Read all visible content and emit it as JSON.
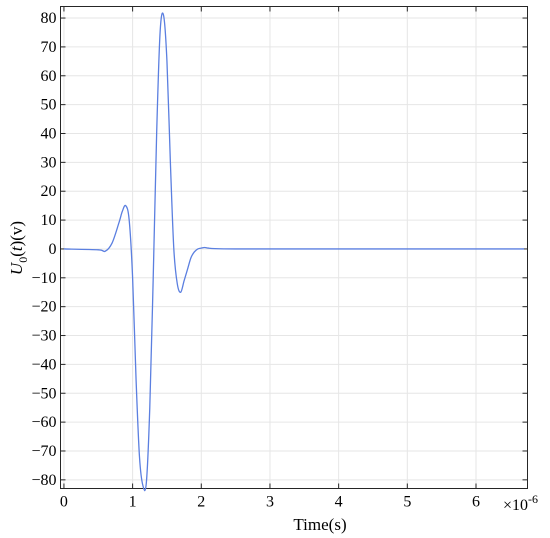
{
  "chart_data": {
    "type": "line",
    "title": "",
    "xlabel": "Time(s)",
    "ylabel_main": "U",
    "ylabel_sub": "0",
    "ylabel_open": "(",
    "ylabel_var": "t",
    "ylabel_close": ")(v)",
    "x_exponent_prefix": "×10",
    "x_exponent_power": "-6",
    "xlim": [
      -0.05,
      6.75
    ],
    "ylim": [
      -83,
      84
    ],
    "x_ticks": [
      0,
      1,
      2,
      3,
      4,
      5,
      6
    ],
    "y_ticks": [
      -80,
      -70,
      -60,
      -50,
      -40,
      -30,
      -20,
      -10,
      0,
      10,
      20,
      30,
      40,
      50,
      60,
      70,
      80
    ],
    "grid": true,
    "line_color": "#5b7fe0",
    "series": [
      {
        "x": [
          0,
          0.5,
          0.6,
          0.7,
          0.8,
          0.85,
          0.9,
          0.95,
          1.0,
          1.05,
          1.1,
          1.15,
          1.2,
          1.25,
          1.3,
          1.35,
          1.4,
          1.45,
          1.5,
          1.55,
          1.6,
          1.65,
          1.7,
          1.75,
          1.8,
          1.85,
          1.9,
          1.95,
          2.0,
          2.05,
          2.1,
          2.2,
          2.5,
          3.0,
          4.0,
          5.0,
          6.0,
          6.7
        ],
        "y": [
          0,
          -0.3,
          -0.8,
          2,
          9,
          13,
          15,
          10,
          -10,
          -45,
          -72,
          -82,
          -81,
          -55,
          -10,
          40,
          75,
          81,
          65,
          30,
          0,
          -12,
          -15,
          -11,
          -7,
          -3,
          -1,
          0,
          0.3,
          0.5,
          0.3,
          0.1,
          0,
          0,
          0,
          0,
          0,
          0
        ]
      }
    ]
  }
}
